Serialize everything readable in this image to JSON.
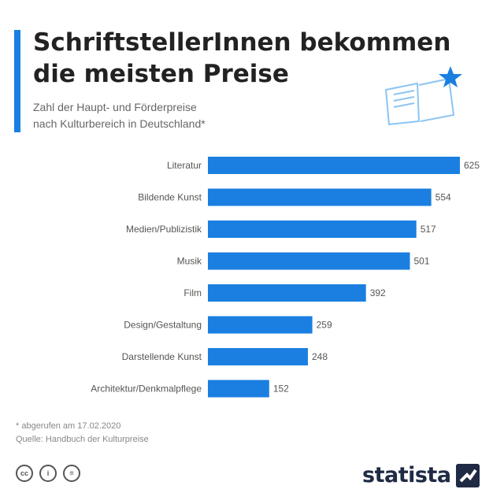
{
  "header": {
    "title_line1": "SchriftstellerInnen bekommen",
    "title_line2": "die meisten Preise",
    "subtitle_line1": "Zahl der Haupt- und Förderpreise",
    "subtitle_line2": "nach Kulturbereich in Deutschland*"
  },
  "chart_data": {
    "type": "bar",
    "orientation": "horizontal",
    "categories": [
      "Literatur",
      "Bildende Kunst",
      "Medien/Publizistik",
      "Musik",
      "Film",
      "Design/Gestaltung",
      "Darstellende Kunst",
      "Architektur/Denkmalpflege"
    ],
    "values": [
      625,
      554,
      517,
      501,
      392,
      259,
      248,
      152
    ],
    "xlim": [
      0,
      625
    ],
    "bar_color": "#1a7fe0",
    "grid": false,
    "legend": "none"
  },
  "footer": {
    "note": "* abgerufen am 17.02.2020",
    "source": "Quelle: Handbuch der Kulturpreise",
    "cc_icons": [
      "cc",
      "i",
      "="
    ],
    "brand": "statista"
  },
  "colors": {
    "accent": "#1a7fe0",
    "brand_dark": "#1f2a44"
  },
  "icons": {
    "decoration": "open-book-star-icon"
  }
}
